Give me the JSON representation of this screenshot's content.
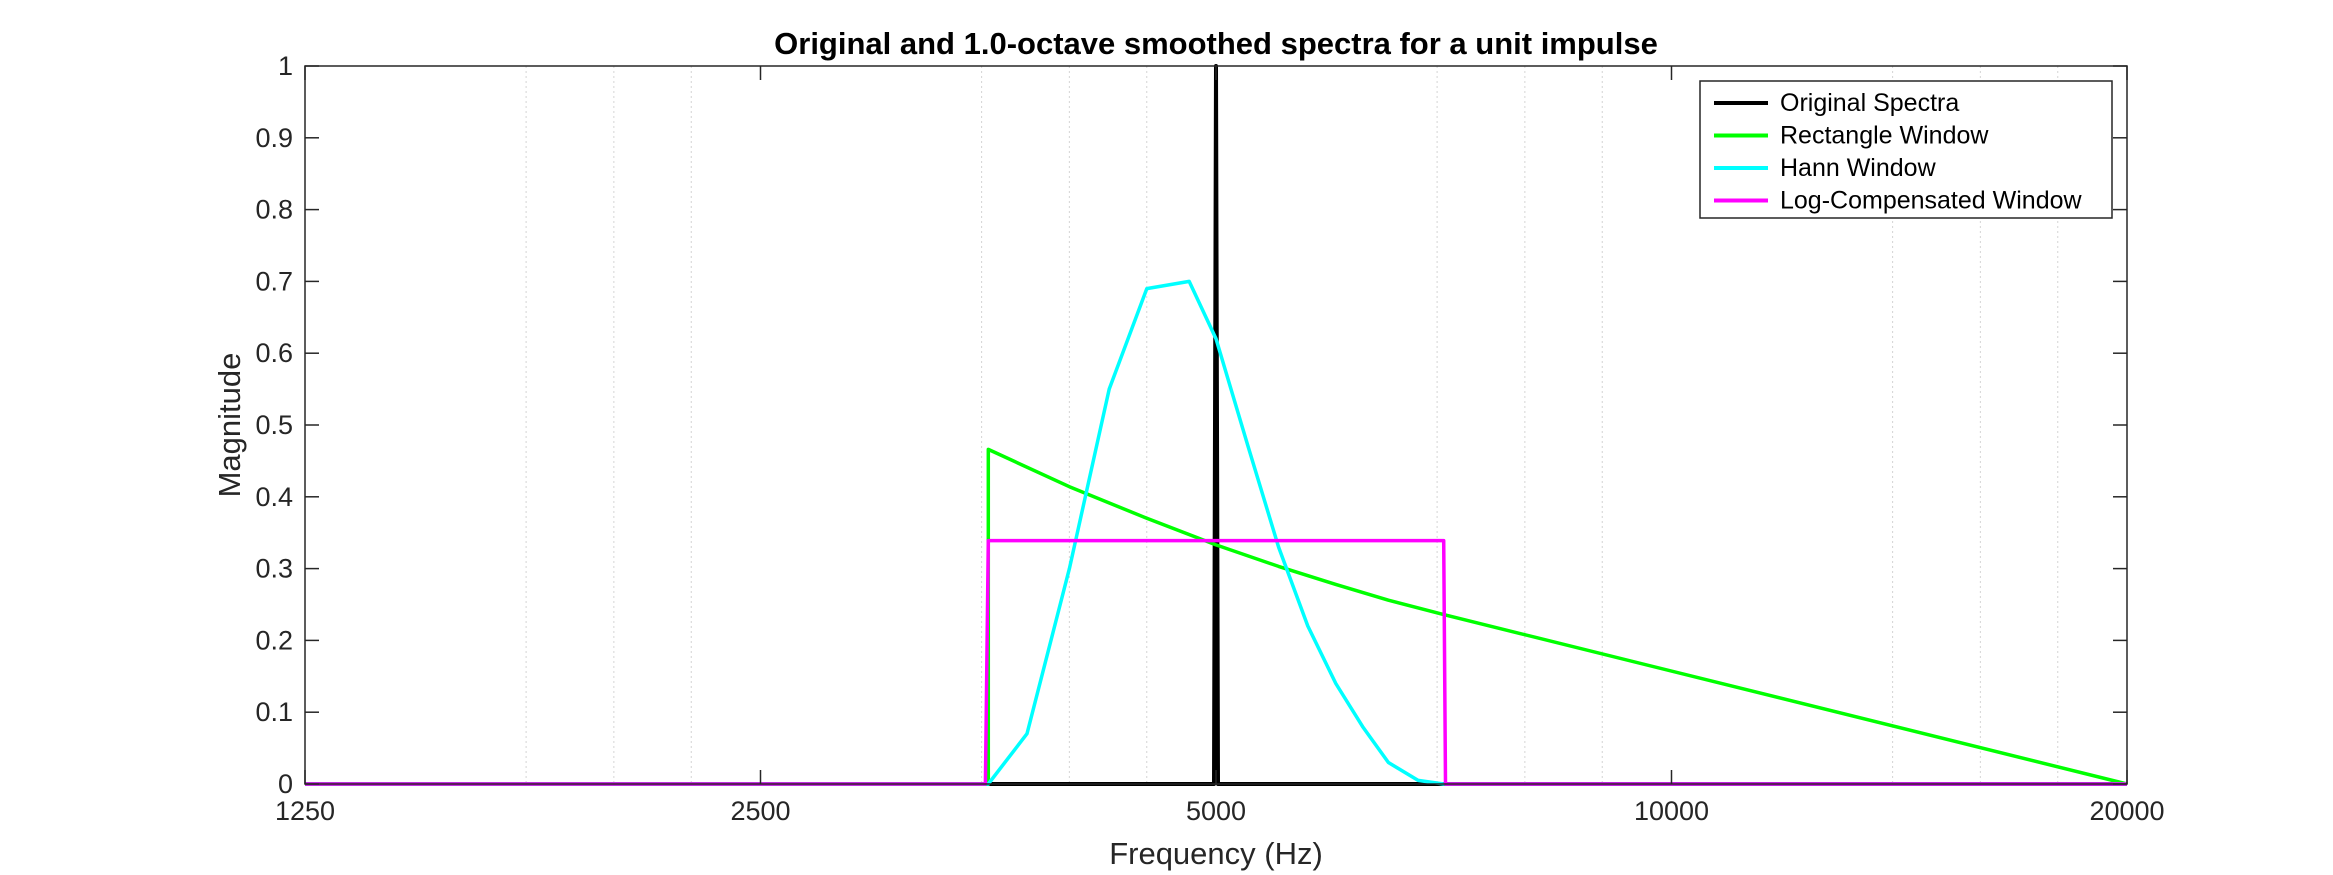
{
  "chart_data": {
    "type": "line",
    "title": "Original and 1.0-octave smoothed spectra for a unit impulse",
    "xlabel": "Frequency (Hz)",
    "ylabel": "Magnitude",
    "xscale": "log2",
    "xlim": [
      1250,
      20000
    ],
    "ylim": [
      0,
      1
    ],
    "xticks": [
      1250,
      2500,
      5000,
      10000,
      20000
    ],
    "xtick_labels": [
      "1250",
      "2500",
      "5000",
      "10000",
      "20000"
    ],
    "yticks": [
      0,
      0.1,
      0.2,
      0.3,
      0.4,
      0.5,
      0.6,
      0.7,
      0.8,
      0.9,
      1
    ],
    "ytick_labels": [
      "0",
      "0.1",
      "0.2",
      "0.3",
      "0.4",
      "0.5",
      "0.6",
      "0.7",
      "0.8",
      "0.9",
      "1"
    ],
    "grid": "x-minor",
    "legend_position": "top-right",
    "series": [
      {
        "name": "Original Spectra",
        "color": "#000000",
        "x": [
          1250,
          4985,
          5000,
          5015,
          20000
        ],
        "y": [
          0,
          0,
          1,
          0,
          0
        ]
      },
      {
        "name": "Rectangle Window",
        "color": "#00ff00",
        "x": [
          1250,
          3536,
          3536,
          4000,
          4500,
          5000,
          5500,
          6000,
          6500,
          7071,
          20000
        ],
        "y": [
          0,
          0,
          0.466,
          0.414,
          0.37,
          0.333,
          0.303,
          0.278,
          0.256,
          0.236,
          0
        ]
      },
      {
        "name": "Hann Window",
        "color": "#00ffff",
        "x": [
          1250,
          3536,
          3750,
          4000,
          4250,
          4500,
          4800,
          5000,
          5250,
          5500,
          5750,
          6000,
          6250,
          6500,
          6800,
          7071,
          20000
        ],
        "y": [
          0,
          0,
          0.07,
          0.3,
          0.55,
          0.69,
          0.7,
          0.62,
          0.47,
          0.33,
          0.22,
          0.14,
          0.08,
          0.03,
          0.005,
          0,
          0
        ]
      },
      {
        "name": "Log-Compensated Window",
        "color": "#ff00ff",
        "x": [
          1250,
          3520,
          3536,
          7071,
          7090,
          20000
        ],
        "y": [
          0,
          0,
          0.339,
          0.339,
          0,
          0
        ]
      }
    ]
  }
}
